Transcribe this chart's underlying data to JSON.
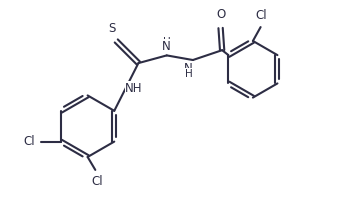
{
  "bg_color": "#ffffff",
  "bond_color": "#2d2d44",
  "text_color": "#2d2d44",
  "line_width": 1.5,
  "font_size": 8.5,
  "figsize": [
    3.63,
    1.97
  ],
  "dpi": 100,
  "xlim": [
    0,
    10.5
  ],
  "ylim": [
    -3.2,
    3.2
  ]
}
